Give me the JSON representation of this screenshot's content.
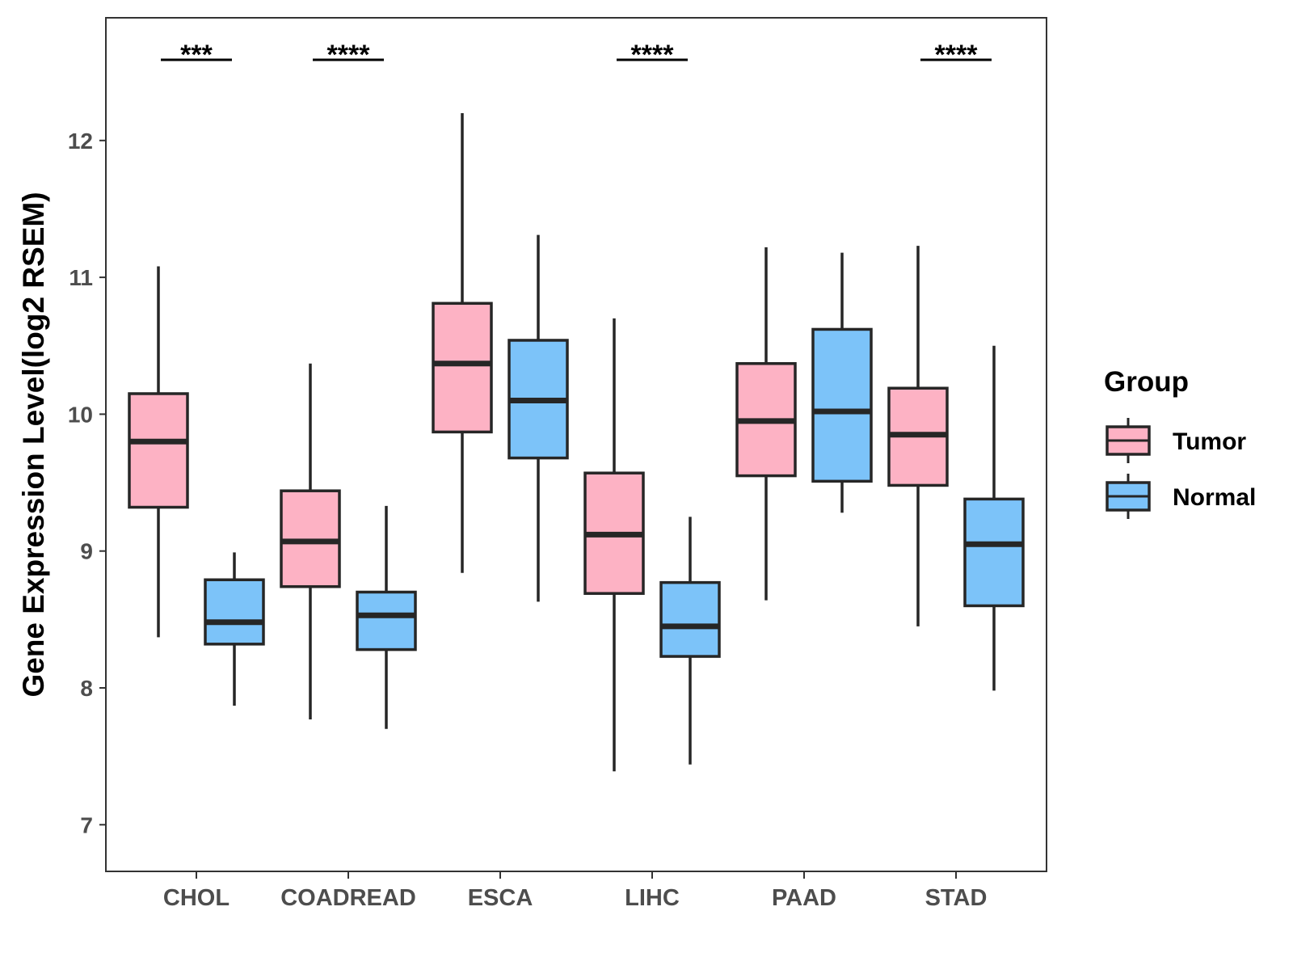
{
  "chart_data": {
    "type": "boxplot",
    "title": "",
    "xlabel": "",
    "ylabel": "Gene Expression Level(log2 RSEM)",
    "ylim": [
      6.65,
      12.9
    ],
    "yticks": [
      7,
      8,
      9,
      10,
      11,
      12
    ],
    "categories": [
      "CHOL",
      "COADREAD",
      "ESCA",
      "LIHC",
      "PAAD",
      "STAD"
    ],
    "legend": {
      "title": "Group",
      "position": "right"
    },
    "series": [
      {
        "name": "Tumor",
        "color": "#fdb2c4",
        "boxes": [
          {
            "min": 8.37,
            "q1": 9.32,
            "median": 9.8,
            "q3": 10.15,
            "max": 11.08
          },
          {
            "min": 7.77,
            "q1": 8.74,
            "median": 9.07,
            "q3": 9.44,
            "max": 10.37
          },
          {
            "min": 8.84,
            "q1": 9.87,
            "median": 10.37,
            "q3": 10.81,
            "max": 12.2
          },
          {
            "min": 7.39,
            "q1": 8.69,
            "median": 9.12,
            "q3": 9.57,
            "max": 10.7
          },
          {
            "min": 8.64,
            "q1": 9.55,
            "median": 9.95,
            "q3": 10.37,
            "max": 11.22
          },
          {
            "min": 8.45,
            "q1": 9.48,
            "median": 9.85,
            "q3": 10.19,
            "max": 11.23
          }
        ]
      },
      {
        "name": "Normal",
        "color": "#7cc3f9",
        "boxes": [
          {
            "min": 7.87,
            "q1": 8.32,
            "median": 8.48,
            "q3": 8.79,
            "max": 8.99
          },
          {
            "min": 7.7,
            "q1": 8.28,
            "median": 8.53,
            "q3": 8.7,
            "max": 9.33
          },
          {
            "min": 8.63,
            "q1": 9.68,
            "median": 10.1,
            "q3": 10.54,
            "max": 11.31
          },
          {
            "min": 7.44,
            "q1": 8.23,
            "median": 8.45,
            "q3": 8.77,
            "max": 9.25
          },
          {
            "min": 9.28,
            "q1": 9.51,
            "median": 10.02,
            "q3": 10.62,
            "max": 11.18
          },
          {
            "min": 7.98,
            "q1": 8.6,
            "median": 9.05,
            "q3": 9.38,
            "max": 10.5
          }
        ]
      }
    ],
    "significance": [
      {
        "category": "CHOL",
        "label": "***"
      },
      {
        "category": "COADREAD",
        "label": "****"
      },
      {
        "category": "ESCA",
        "label": ""
      },
      {
        "category": "LIHC",
        "label": "****"
      },
      {
        "category": "PAAD",
        "label": ""
      },
      {
        "category": "STAD",
        "label": "****"
      }
    ]
  },
  "colors": {
    "outline": "#262626",
    "axis": "#333333",
    "tick_text": "#4d4d4d"
  }
}
